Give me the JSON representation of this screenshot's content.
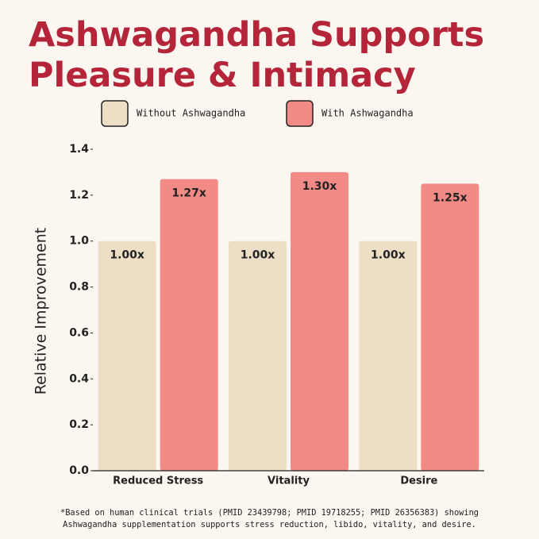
{
  "chart_data": {
    "type": "bar",
    "title": [
      "Ashwagandha Supports",
      "Pleasure & Intimacy"
    ],
    "ylabel": "Relative Improvement",
    "categories": [
      "Reduced Stress",
      "Vitality",
      "Desire"
    ],
    "series": [
      {
        "name": "Without Ashwagandha",
        "color": "#ecdfc6",
        "values": [
          1.0,
          1.0,
          1.0
        ],
        "value_labels": [
          "1.00x",
          "1.00x",
          "1.00x"
        ]
      },
      {
        "name": "With Ashwagandha",
        "color": "#f28a86",
        "values": [
          1.27,
          1.3,
          1.25
        ],
        "value_labels": [
          "1.27x",
          "1.30x",
          "1.25x"
        ]
      }
    ],
    "ylim": [
      0,
      1.4
    ],
    "yticks": [
      {
        "value": 0,
        "label": "0.0"
      },
      {
        "value": 0.2,
        "label": "0.2"
      },
      {
        "value": 0.4,
        "label": "0.4"
      },
      {
        "value": 0.6,
        "label": "0.6"
      },
      {
        "value": 0.8,
        "label": "0.8"
      },
      {
        "value": 1.0,
        "label": "1.0"
      },
      {
        "value": 1.2,
        "label": "1.2"
      },
      {
        "value": 1.4,
        "label": "1.4"
      }
    ],
    "grid": false,
    "footnote": [
      "*Based on human clinical trials (PMID 23439798; PMID 19718255; PMID 26356383) showing",
      "Ashwagandha supplementation supports stress reduction, libido, vitality, and desire."
    ]
  }
}
